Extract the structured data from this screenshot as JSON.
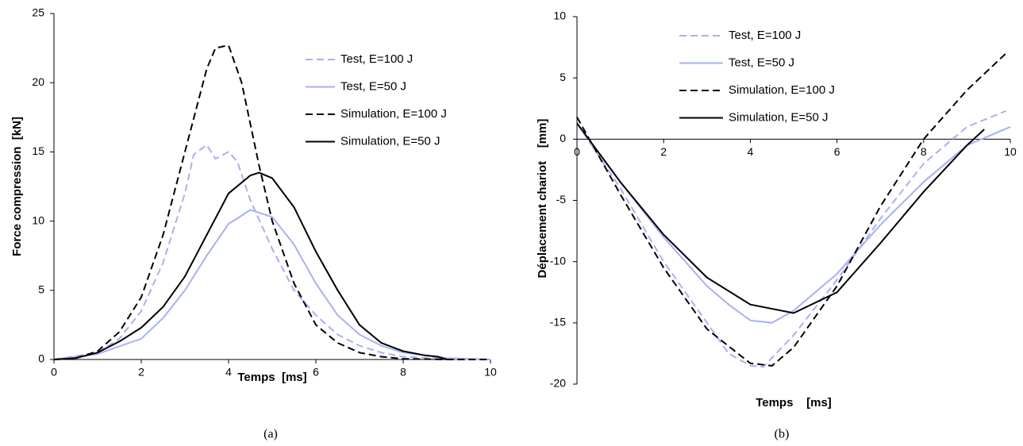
{
  "chart_data": [
    {
      "type": "line",
      "caption": "(a)",
      "xlabel": "Temps  [ms]",
      "ylabel": "Force compression  [kN]",
      "xlim": [
        0,
        10
      ],
      "xticks": [
        0,
        2,
        4,
        6,
        8,
        10
      ],
      "ylim": [
        0,
        25
      ],
      "yticks": [
        0,
        5,
        10,
        15,
        20,
        25
      ],
      "legend": "upper right",
      "x_axis_at_zero": false,
      "series": [
        {
          "name": "Test, E=100 J",
          "color": "#a8b0f5",
          "linestyle": "dashed",
          "x": [
            0,
            1,
            1.5,
            2,
            2.5,
            3,
            3.2,
            3.5,
            3.7,
            4,
            4.2,
            4.5,
            5,
            5.5,
            6,
            6.5,
            7,
            7.5,
            8,
            9,
            10
          ],
          "values": [
            0,
            0.5,
            1.5,
            3.5,
            7,
            12,
            14.8,
            15.5,
            14.5,
            15,
            14.3,
            11.5,
            8,
            5,
            3.2,
            1.8,
            1,
            0.5,
            0.2,
            0.05,
            0
          ]
        },
        {
          "name": "Test, E=50 J",
          "color": "#a8b0f5",
          "linestyle": "solid",
          "x": [
            0,
            1,
            2,
            2.5,
            3,
            3.5,
            4,
            4.5,
            5,
            5.5,
            6,
            6.5,
            7,
            7.5,
            8,
            8.5,
            9,
            9.5,
            10
          ],
          "values": [
            0,
            0.4,
            1.5,
            3,
            5,
            7.5,
            9.8,
            10.8,
            10.3,
            8.3,
            5.5,
            3.2,
            1.8,
            1,
            0.5,
            0.3,
            0.1,
            0.05,
            0
          ]
        },
        {
          "name": "Simulation, E=100 J",
          "color": "#000000",
          "linestyle": "dashed",
          "x": [
            0,
            0.5,
            1,
            1.5,
            2,
            2.5,
            3,
            3.5,
            3.7,
            4,
            4.3,
            4.7,
            5,
            5.5,
            6,
            6.5,
            7,
            7.5,
            8,
            9,
            10
          ],
          "values": [
            0,
            0.1,
            0.6,
            2,
            4.5,
            9,
            15,
            21,
            22.5,
            22.7,
            20,
            14,
            10,
            5.5,
            2.5,
            1.2,
            0.5,
            0.2,
            0.05,
            0,
            0
          ]
        },
        {
          "name": "Simulation, E=50 J",
          "color": "#000000",
          "linestyle": "solid",
          "x": [
            0,
            0.5,
            1,
            1.5,
            2,
            2.5,
            3,
            3.5,
            4,
            4.5,
            4.7,
            5,
            5.5,
            6,
            6.5,
            7,
            7.5,
            8,
            8.5,
            8.8,
            9
          ],
          "values": [
            0,
            0.1,
            0.5,
            1.3,
            2.3,
            3.8,
            6,
            9,
            12,
            13.3,
            13.5,
            13.1,
            11,
            7.8,
            5,
            2.5,
            1.2,
            0.6,
            0.3,
            0.2,
            0
          ]
        }
      ]
    },
    {
      "type": "line",
      "caption": "(b)",
      "xlabel": "Temps    [ms]",
      "ylabel": "Déplacement chariot    [mm]",
      "xlim": [
        0,
        10
      ],
      "xticks": [
        0,
        2,
        4,
        6,
        8,
        10
      ],
      "ylim": [
        -20,
        10
      ],
      "yticks": [
        -20,
        -15,
        -10,
        -5,
        0,
        5,
        10
      ],
      "legend": "upper center",
      "x_axis_at_zero": true,
      "series": [
        {
          "name": "Test, E=100 J",
          "color": "#a8b0f5",
          "linestyle": "dashed",
          "x": [
            0,
            1,
            2,
            3,
            3.5,
            4,
            4.3,
            5,
            6,
            7,
            8,
            9,
            9.9
          ],
          "values": [
            1.3,
            -4,
            -10,
            -15,
            -17.5,
            -18.5,
            -18.6,
            -16,
            -11.5,
            -6.5,
            -2,
            1,
            2.3
          ]
        },
        {
          "name": "Test, E=50 J",
          "color": "#a8b0f5",
          "linestyle": "solid",
          "x": [
            0,
            1,
            2,
            3,
            3.5,
            4,
            4.5,
            5,
            6,
            7,
            8,
            9,
            10
          ],
          "values": [
            1.3,
            -3.5,
            -8,
            -12,
            -13.5,
            -14.8,
            -15,
            -14,
            -11,
            -7,
            -3.5,
            -0.5,
            1
          ]
        },
        {
          "name": "Simulation, E=100 J",
          "color": "#000000",
          "linestyle": "dashed",
          "x": [
            0,
            1,
            2,
            3,
            4,
            4.5,
            5,
            6,
            7,
            8,
            9,
            9.9
          ],
          "values": [
            1.8,
            -4.5,
            -10.5,
            -15.5,
            -18.3,
            -18.5,
            -17,
            -12,
            -5.5,
            0,
            4,
            7
          ]
        },
        {
          "name": "Simulation, E=50 J",
          "color": "#000000",
          "linestyle": "solid",
          "x": [
            0,
            1,
            2,
            3,
            4,
            5,
            6,
            7,
            8,
            9,
            9.4
          ],
          "values": [
            1.3,
            -3.5,
            -7.8,
            -11.3,
            -13.5,
            -14.2,
            -12.5,
            -8.5,
            -4.3,
            -0.5,
            0.8
          ]
        }
      ]
    }
  ]
}
